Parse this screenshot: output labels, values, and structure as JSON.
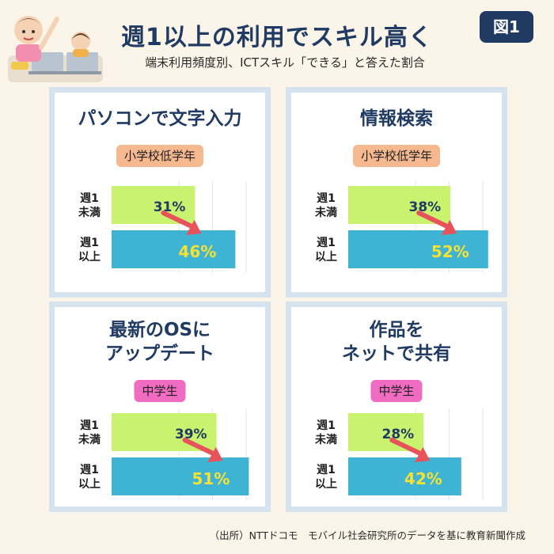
{
  "header": {
    "title": "週1以上の利用でスキル高く",
    "subtitle": "端末利用頻度別、ICTスキル「できる」と答えた割合",
    "figure_label": "図1"
  },
  "source": "（出所）NTTドコモ　モバイル社会研究所のデータを基に教育新聞作成",
  "colors": {
    "low": "#c9f36e",
    "high": "#3fb3d3",
    "arrow": "#e8525a",
    "high_label": "#f5e232",
    "low_label": "#1f3a63"
  },
  "chart_data": [
    {
      "type": "bar",
      "title": "パソコンで文字入力",
      "group": "小学校低学年",
      "categories": [
        "週1\n未満",
        "週1\n以上"
      ],
      "values": [
        31,
        46
      ],
      "value_labels": [
        "31%",
        "46%"
      ],
      "unit": "%"
    },
    {
      "type": "bar",
      "title": "情報検索",
      "group": "小学校低学年",
      "categories": [
        "週1\n未満",
        "週1\n以上"
      ],
      "values": [
        38,
        52
      ],
      "value_labels": [
        "38%",
        "52%"
      ],
      "unit": "%"
    },
    {
      "type": "bar",
      "title": "最新のOSに\nアップデート",
      "group": "中学生",
      "categories": [
        "週1\n未満",
        "週1\n以上"
      ],
      "values": [
        39,
        51
      ],
      "value_labels": [
        "39%",
        "51%"
      ],
      "unit": "%"
    },
    {
      "type": "bar",
      "title": "作品を\nネットで共有",
      "group": "中学生",
      "categories": [
        "週1\n未満",
        "週1\n以上"
      ],
      "values": [
        28,
        42
      ],
      "value_labels": [
        "28%",
        "42%"
      ],
      "unit": "%"
    }
  ]
}
